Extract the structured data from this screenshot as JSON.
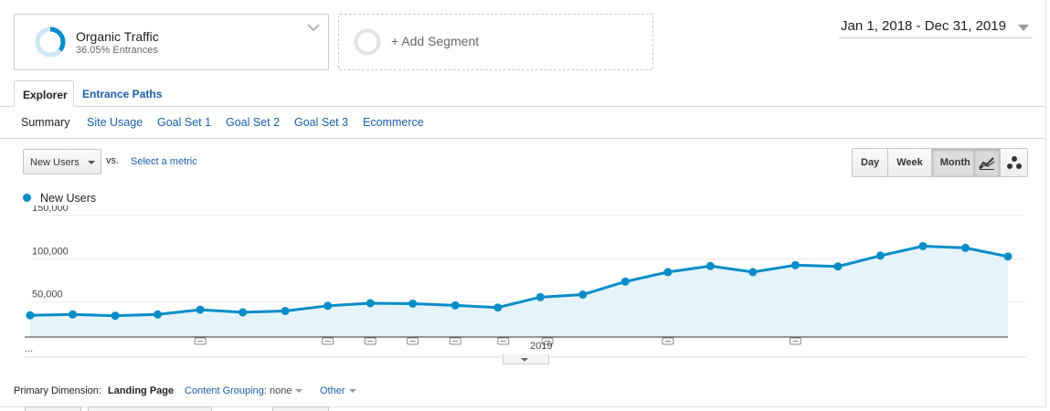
{
  "segments": {
    "primary": {
      "title": "Organic Traffic",
      "subtitle": "36.05% Entrances",
      "percent": 36.05
    },
    "add_label": "+ Add Segment"
  },
  "date_range": "Jan 1, 2018 - Dec 31, 2019",
  "tabs": [
    {
      "label": "Explorer",
      "active": true
    },
    {
      "label": "Entrance Paths",
      "active": false
    }
  ],
  "subnav": [
    "Summary",
    "Site Usage",
    "Goal Set 1",
    "Goal Set 2",
    "Goal Set 3",
    "Ecommerce"
  ],
  "metric_selector": {
    "value": "New Users",
    "vs_label": "vs.",
    "second_metric": "Select a metric"
  },
  "granularity": {
    "options": [
      "Day",
      "Week",
      "Month"
    ],
    "selected": "Month"
  },
  "chart_view_icons": [
    "line-chart-icon",
    "motion-chart-icon"
  ],
  "colors": {
    "series": "#058dc7",
    "fill": "#e5f3fa",
    "link": "#1a5fa8"
  },
  "chart_data": {
    "type": "area",
    "series": [
      {
        "name": "New Users",
        "values": [
          23000,
          24000,
          22500,
          24000,
          29500,
          26500,
          28000,
          34000,
          37000,
          36500,
          34500,
          32000,
          44000,
          47000,
          62000,
          73000,
          80000,
          73000,
          81000,
          79500,
          92000,
          103000,
          101000,
          91000
        ]
      }
    ],
    "ylim": [
      0,
      150000
    ],
    "yticks": [
      "150,000",
      "100,000",
      "50,000"
    ],
    "xticks": [
      "...",
      "2019"
    ],
    "annotation_markers_count": 9,
    "grid": true,
    "legend": "top-left"
  },
  "primary_dimension": {
    "label": "Primary Dimension:",
    "selected": "Landing Page",
    "content_grouping_label": "Content Grouping:",
    "content_grouping_value": "none",
    "other_label": "Other"
  }
}
